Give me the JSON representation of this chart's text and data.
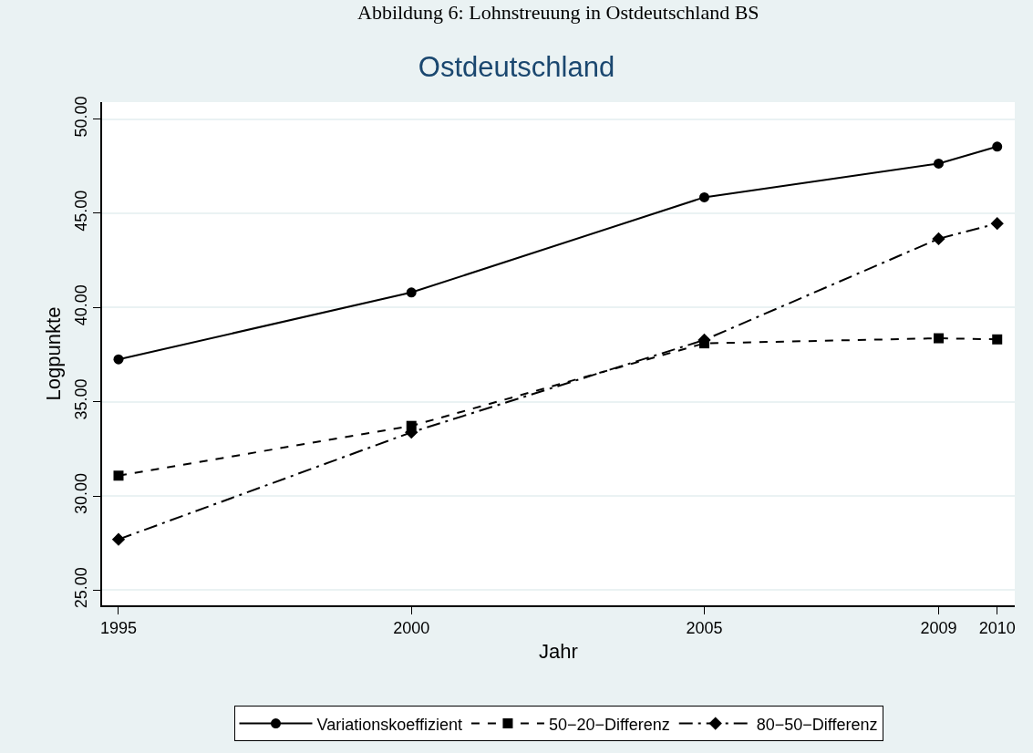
{
  "chart_data": {
    "type": "line",
    "title": "Ostdeutschland",
    "annotations": [
      "Abbildung 6: Lohnstreuung in Ostdeutschland BS"
    ],
    "xlabel": "Jahr",
    "ylabel": "Logpunkte",
    "x": [
      1995,
      2000,
      2005,
      2009,
      2010
    ],
    "series": [
      {
        "name": "Variationskoeffizient",
        "color": "#000000",
        "marker": "circle",
        "line_style": "solid",
        "values": [
          37.25,
          40.8,
          45.85,
          47.64,
          48.54
        ]
      },
      {
        "name": "50−20−Differenz",
        "color": "#000000",
        "marker": "square",
        "line_style": "dashed",
        "values": [
          31.08,
          33.72,
          38.1,
          38.37,
          38.31
        ]
      },
      {
        "name": "80−50−Differenz",
        "color": "#000000",
        "marker": "diamond",
        "line_style": "dashdot",
        "values": [
          27.7,
          33.38,
          38.28,
          43.65,
          44.46
        ]
      }
    ],
    "xlim": [
      1994.72,
      2010.3
    ],
    "xticks": [
      1995,
      2000,
      2005,
      2009,
      2010
    ],
    "ylim": [
      24.2,
      50.9
    ],
    "yticks": [
      {
        "value": 25,
        "label": "25.00"
      },
      {
        "value": 30,
        "label": "30.00"
      },
      {
        "value": 35,
        "label": "35.00"
      },
      {
        "value": 40,
        "label": "40.00"
      },
      {
        "value": 45,
        "label": "45.00"
      },
      {
        "value": 50,
        "label": "50.00"
      }
    ],
    "grid": "y",
    "legend": "bottom"
  }
}
